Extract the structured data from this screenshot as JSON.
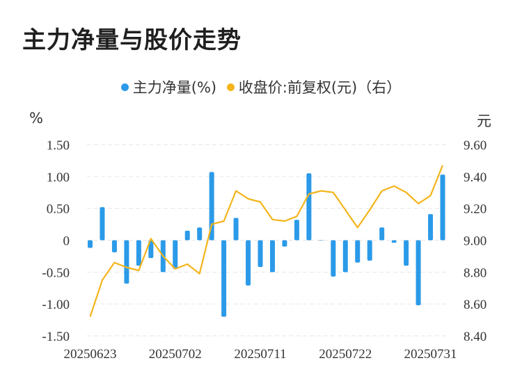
{
  "title": "主力净量与股价走势",
  "legend": [
    {
      "label": "主力净量(%)",
      "color": "#2b9ae8"
    },
    {
      "label": "收盘价:前复权(元)（右）",
      "color": "#f4b41a"
    }
  ],
  "chart_data": {
    "type": "bar+line",
    "left_unit": "%",
    "right_unit": "元",
    "left_ticks": [
      "1.50",
      "1.00",
      "0.50",
      "0",
      "-0.50",
      "-1.00",
      "-1.50"
    ],
    "right_ticks": [
      "9.60",
      "9.40",
      "9.20",
      "9.00",
      "8.80",
      "8.60",
      "8.40"
    ],
    "ylim_left": [
      -1.5,
      1.5
    ],
    "ylim_right": [
      8.4,
      9.6
    ],
    "x_tick_labels": [
      "20250623",
      "20250702",
      "20250711",
      "20250722",
      "20250731"
    ],
    "x_tick_index": [
      0,
      7,
      14,
      21,
      28
    ],
    "grid": true,
    "series": [
      {
        "name": "主力净量(%)",
        "kind": "bar",
        "color": "#2b9ae8",
        "values": [
          -0.12,
          0.52,
          -0.19,
          -0.68,
          -0.4,
          -0.28,
          -0.5,
          -0.45,
          0.15,
          0.2,
          1.07,
          -1.2,
          0.35,
          -0.71,
          -0.42,
          -0.5,
          -0.1,
          0.32,
          1.05,
          0.0,
          -0.57,
          -0.5,
          -0.35,
          -0.32,
          0.2,
          -0.04,
          -0.4,
          -1.02,
          0.41,
          1.03
        ]
      },
      {
        "name": "收盘价:前复权(元)（右）",
        "kind": "line",
        "color": "#f4b41a",
        "values": [
          8.52,
          8.75,
          8.86,
          8.83,
          8.81,
          9.01,
          8.9,
          8.82,
          8.85,
          8.79,
          9.1,
          9.12,
          9.31,
          9.26,
          9.24,
          9.13,
          9.12,
          9.15,
          9.29,
          9.31,
          9.3,
          9.19,
          9.08,
          9.19,
          9.31,
          9.34,
          9.3,
          9.23,
          9.28,
          9.47
        ]
      }
    ]
  }
}
